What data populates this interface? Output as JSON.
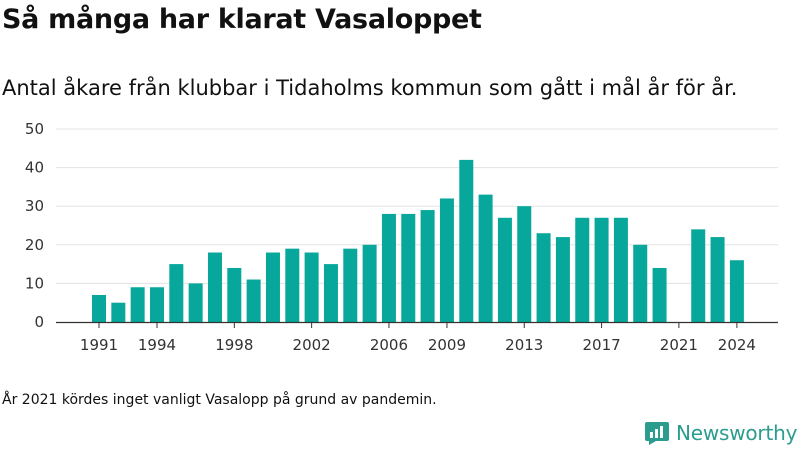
{
  "title": "Så många har klarat Vasaloppet",
  "subtitle": "Antal åkare från klubbar i Tidaholms kommun som gått i mål år för år.",
  "note": "År 2021 kördes inget vanligt Vasalopp på grund av pandemin.",
  "brand": {
    "name": "Newsworthy",
    "color": "#2a9d8f",
    "icon": "newsworthy-logo-icon"
  },
  "colors": {
    "bar": "#07a89b",
    "grid": "#e3e3e3",
    "axis": "#333333"
  },
  "chart_data": {
    "type": "bar",
    "x": [
      1991,
      1992,
      1993,
      1994,
      1995,
      1996,
      1997,
      1998,
      1999,
      2000,
      2001,
      2002,
      2003,
      2004,
      2005,
      2006,
      2007,
      2008,
      2009,
      2010,
      2011,
      2012,
      2013,
      2014,
      2015,
      2016,
      2017,
      2018,
      2019,
      2020,
      2021,
      2022,
      2023,
      2024
    ],
    "values": [
      7,
      5,
      9,
      9,
      15,
      10,
      18,
      14,
      11,
      18,
      19,
      18,
      15,
      19,
      20,
      28,
      28,
      29,
      32,
      42,
      33,
      27,
      30,
      23,
      22,
      27,
      27,
      27,
      20,
      14,
      0,
      24,
      22,
      16
    ],
    "xticks": [
      1991,
      1994,
      1998,
      2002,
      2006,
      2009,
      2013,
      2017,
      2021,
      2024
    ],
    "yticks": [
      0,
      10,
      20,
      30,
      40,
      50
    ],
    "ylim": [
      0,
      50
    ],
    "grid": true,
    "xlabel": "",
    "ylabel": ""
  }
}
